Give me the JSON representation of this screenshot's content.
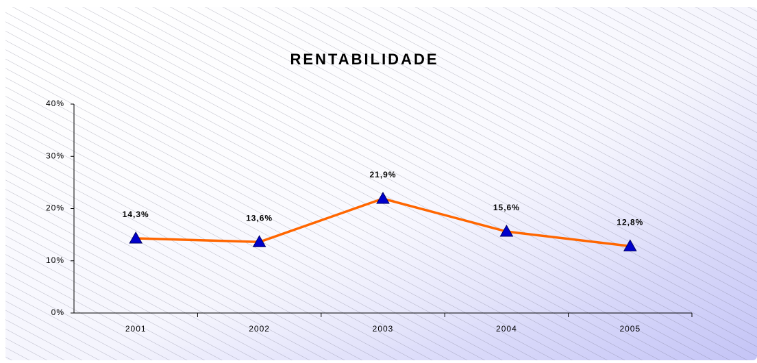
{
  "chart_data": {
    "type": "line",
    "title": "RENTABILIDADE",
    "categories": [
      "2001",
      "2002",
      "2003",
      "2004",
      "2005"
    ],
    "series": [
      {
        "name": "Rentabilidade",
        "color": "#ff6600",
        "marker_color": "#0000cc",
        "values": [
          14.3,
          13.6,
          21.9,
          15.6,
          12.8
        ],
        "value_labels": [
          "14,3%",
          "13,6%",
          "21,9%",
          "15,6%",
          "12,8%"
        ]
      }
    ],
    "ylim": [
      0,
      40
    ],
    "yticks": [
      {
        "value": 0,
        "label": "0%"
      },
      {
        "value": 10,
        "label": "10%"
      },
      {
        "value": 20,
        "label": "20%"
      },
      {
        "value": 30,
        "label": "30%"
      },
      {
        "value": 40,
        "label": "40%"
      }
    ],
    "grid": false
  }
}
